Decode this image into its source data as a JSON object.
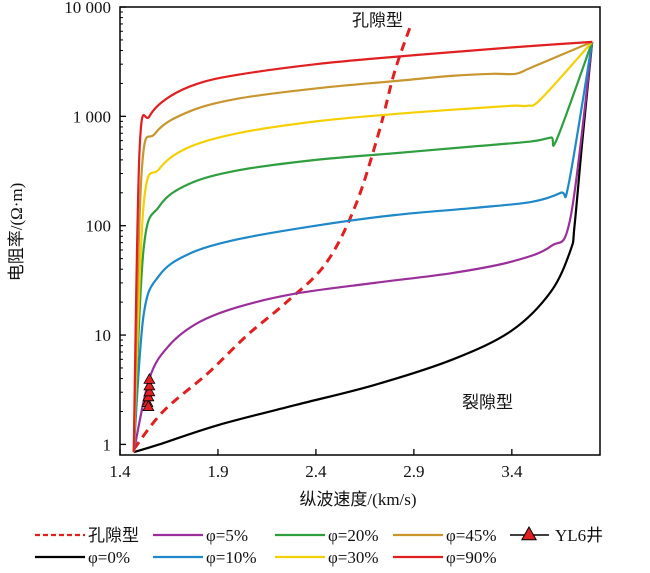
{
  "chart_data": {
    "type": "line",
    "xlabel": "纵波速度/(km/s)",
    "ylabel": "电阻率/(Ω·m)",
    "xlim": [
      1.4,
      3.85
    ],
    "ylim": [
      0.8,
      10000
    ],
    "yscale": "log",
    "xticks": [
      "1.4",
      "1.9",
      "2.4",
      "2.9",
      "3.4"
    ],
    "yticks": [
      "1",
      "10",
      "100",
      "1 000",
      "10 000"
    ],
    "grid": false,
    "legend_position": "bottom",
    "annotations": [
      "孔隙型",
      "裂隙型"
    ],
    "series": [
      {
        "name": "孔隙型",
        "color": "#e02020",
        "style": "dashed",
        "x": [
          1.47,
          1.62,
          1.85,
          2.05,
          2.25,
          2.45,
          2.6,
          2.72,
          2.8,
          2.88
        ],
        "y": [
          0.9,
          2.0,
          4.5,
          10.0,
          20.0,
          45.0,
          150.0,
          700.0,
          2500.0,
          6500.0
        ]
      },
      {
        "name": "φ=0%",
        "color": "#000000",
        "style": "solid",
        "x": [
          1.47,
          1.6,
          1.9,
          2.3,
          2.7,
          3.1,
          3.4,
          3.6,
          3.7,
          3.72,
          3.76,
          3.81
        ],
        "y": [
          0.85,
          1.0,
          1.5,
          2.3,
          3.5,
          6.0,
          11.0,
          25.0,
          60.0,
          100.0,
          600.0,
          4800.0
        ]
      },
      {
        "name": "φ=5%",
        "color": "#9b2f9a",
        "style": "solid",
        "x": [
          1.47,
          1.55,
          1.65,
          1.8,
          2.0,
          2.3,
          2.7,
          3.1,
          3.4,
          3.6,
          3.7,
          3.81
        ],
        "y": [
          0.85,
          4.0,
          8.0,
          13.0,
          18.0,
          24.0,
          30.0,
          37.0,
          47.0,
          65.0,
          120.0,
          4800.0
        ]
      },
      {
        "name": "φ=10%",
        "color": "#1e88c8",
        "style": "solid",
        "x": [
          1.47,
          1.52,
          1.6,
          1.75,
          2.0,
          2.4,
          2.8,
          3.2,
          3.5,
          3.65,
          3.69,
          3.81
        ],
        "y": [
          0.85,
          15.0,
          35.0,
          55.0,
          75.0,
          100.0,
          125.0,
          145.0,
          165.0,
          200.0,
          240.0,
          4800.0
        ]
      },
      {
        "name": "φ=20%",
        "color": "#2f9e3e",
        "style": "solid",
        "x": [
          1.47,
          1.52,
          1.6,
          1.75,
          2.0,
          2.4,
          2.8,
          3.2,
          3.5,
          3.6,
          3.63,
          3.81
        ],
        "y": [
          0.85,
          60.0,
          150.0,
          240.0,
          320.0,
          400.0,
          460.0,
          530.0,
          590.0,
          640.0,
          620.0,
          4800.0
        ]
      },
      {
        "name": "φ=30%",
        "color": "#f5d000",
        "style": "solid",
        "x": [
          1.47,
          1.52,
          1.6,
          1.75,
          2.0,
          2.4,
          2.8,
          3.1,
          3.4,
          3.48,
          3.55,
          3.81
        ],
        "y": [
          0.85,
          150.0,
          330.0,
          520.0,
          700.0,
          900.0,
          1050.0,
          1150.0,
          1250.0,
          1250.0,
          1450.0,
          4800.0
        ]
      },
      {
        "name": "φ=45%",
        "color": "#c8962e",
        "style": "solid",
        "x": [
          1.47,
          1.51,
          1.58,
          1.75,
          2.0,
          2.4,
          2.8,
          3.1,
          3.3,
          3.42,
          3.5,
          3.81
        ],
        "y": [
          0.85,
          300.0,
          700.0,
          1100.0,
          1450.0,
          1800.0,
          2100.0,
          2350.0,
          2450.0,
          2450.0,
          2800.0,
          4800.0
        ]
      },
      {
        "name": "φ=90%",
        "color": "#e02020",
        "style": "solid",
        "x": [
          1.47,
          1.5,
          1.55,
          1.65,
          1.8,
          2.0,
          2.4,
          2.8,
          3.2,
          3.5,
          3.81
        ],
        "y": [
          0.85,
          500.0,
          1000.0,
          1500.0,
          2000.0,
          2400.0,
          3000.0,
          3500.0,
          4000.0,
          4400.0,
          4800.0
        ]
      },
      {
        "name": "YL6井",
        "color": "#e02020",
        "type": "scatter",
        "marker": "triangle",
        "x": [
          1.54,
          1.545,
          1.55,
          1.55,
          1.545,
          1.55
        ],
        "y": [
          2.4,
          2.7,
          3.0,
          3.4,
          2.2,
          3.9
        ]
      }
    ],
    "legend": [
      "孔隙型",
      "φ=5%",
      "φ=20%",
      "φ=45%",
      "YL6井",
      "φ=0%",
      "φ=10%",
      "φ=30%",
      "φ=90%"
    ]
  }
}
